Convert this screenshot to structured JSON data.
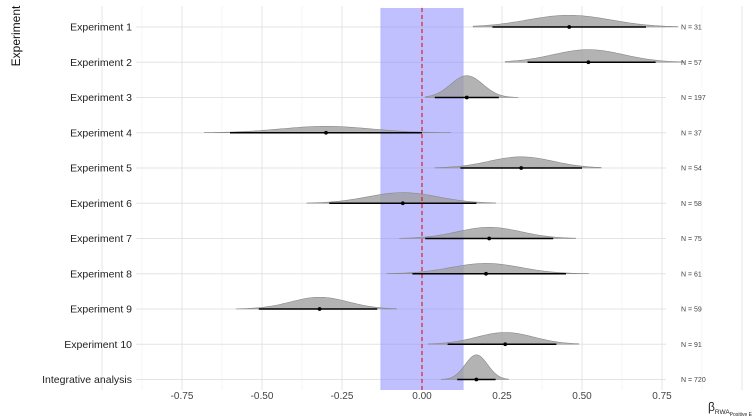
{
  "chart_data": {
    "type": "ridgeline",
    "ylabel": "Experiment",
    "xlabel": {
      "symbol": "β",
      "subscript": "RWA",
      "subsubscript": "Positive E"
    },
    "xlim": [
      -1.0,
      1.0
    ],
    "xticks": [
      -0.75,
      -0.5,
      -0.25,
      0.0,
      0.25,
      0.5,
      0.75
    ],
    "xtick_labels": [
      "-0.75",
      "-0.50",
      "-0.25",
      "0.00",
      "0.25",
      "0.50",
      "0.75"
    ],
    "grid": true,
    "region_of_practical_equivalence": [
      -0.13,
      0.13
    ],
    "reference_line": 0.0,
    "colors": {
      "density_fill": "#9e9e9e",
      "rope_fill": "#8c8cff",
      "reference_line": "#e01010",
      "interval": "#000000"
    },
    "series": [
      {
        "label": "Experiment 1",
        "mean": 0.46,
        "lower": 0.22,
        "upper": 0.7,
        "dens_min": 0.16,
        "dens_max": 0.8,
        "sd": 0.13,
        "peak": 0.42,
        "n_label": "N = 31"
      },
      {
        "label": "Experiment 2",
        "mean": 0.52,
        "lower": 0.33,
        "upper": 0.73,
        "dens_min": 0.26,
        "dens_max": 0.82,
        "sd": 0.11,
        "peak": 0.45,
        "n_label": "N = 57"
      },
      {
        "label": "Experiment 3",
        "mean": 0.14,
        "lower": 0.04,
        "upper": 0.24,
        "dens_min": 0.01,
        "dens_max": 0.3,
        "sd": 0.05,
        "peak": 0.78,
        "n_label": "N = 197"
      },
      {
        "label": "Experiment 4",
        "mean": -0.3,
        "lower": -0.6,
        "upper": 0.0,
        "dens_min": -0.68,
        "dens_max": 0.09,
        "sd": 0.14,
        "peak": 0.23,
        "n_label": "N = 37"
      },
      {
        "label": "Experiment 5",
        "mean": 0.31,
        "lower": 0.12,
        "upper": 0.5,
        "dens_min": 0.04,
        "dens_max": 0.56,
        "sd": 0.1,
        "peak": 0.4,
        "n_label": "N = 54"
      },
      {
        "label": "Experiment 6",
        "mean": -0.06,
        "lower": -0.29,
        "upper": 0.17,
        "dens_min": -0.36,
        "dens_max": 0.23,
        "sd": 0.11,
        "peak": 0.38,
        "n_label": "N = 58"
      },
      {
        "label": "Experiment 7",
        "mean": 0.21,
        "lower": 0.01,
        "upper": 0.41,
        "dens_min": -0.07,
        "dens_max": 0.48,
        "sd": 0.1,
        "peak": 0.4,
        "n_label": "N = 75"
      },
      {
        "label": "Experiment 8",
        "mean": 0.2,
        "lower": -0.03,
        "upper": 0.45,
        "dens_min": -0.11,
        "dens_max": 0.52,
        "sd": 0.11,
        "peak": 0.37,
        "n_label": "N = 61"
      },
      {
        "label": "Experiment 9",
        "mean": -0.32,
        "lower": -0.51,
        "upper": -0.14,
        "dens_min": -0.58,
        "dens_max": -0.08,
        "sd": 0.09,
        "peak": 0.42,
        "n_label": "N = 59"
      },
      {
        "label": "Experiment 10",
        "mean": 0.26,
        "lower": 0.08,
        "upper": 0.42,
        "dens_min": 0.02,
        "dens_max": 0.49,
        "sd": 0.09,
        "peak": 0.42,
        "n_label": "N = 91"
      },
      {
        "label": "Integrative analysis",
        "mean": 0.17,
        "lower": 0.11,
        "upper": 0.23,
        "dens_min": 0.06,
        "dens_max": 0.27,
        "sd": 0.035,
        "peak": 0.88,
        "n_label": "N = 720"
      }
    ]
  }
}
